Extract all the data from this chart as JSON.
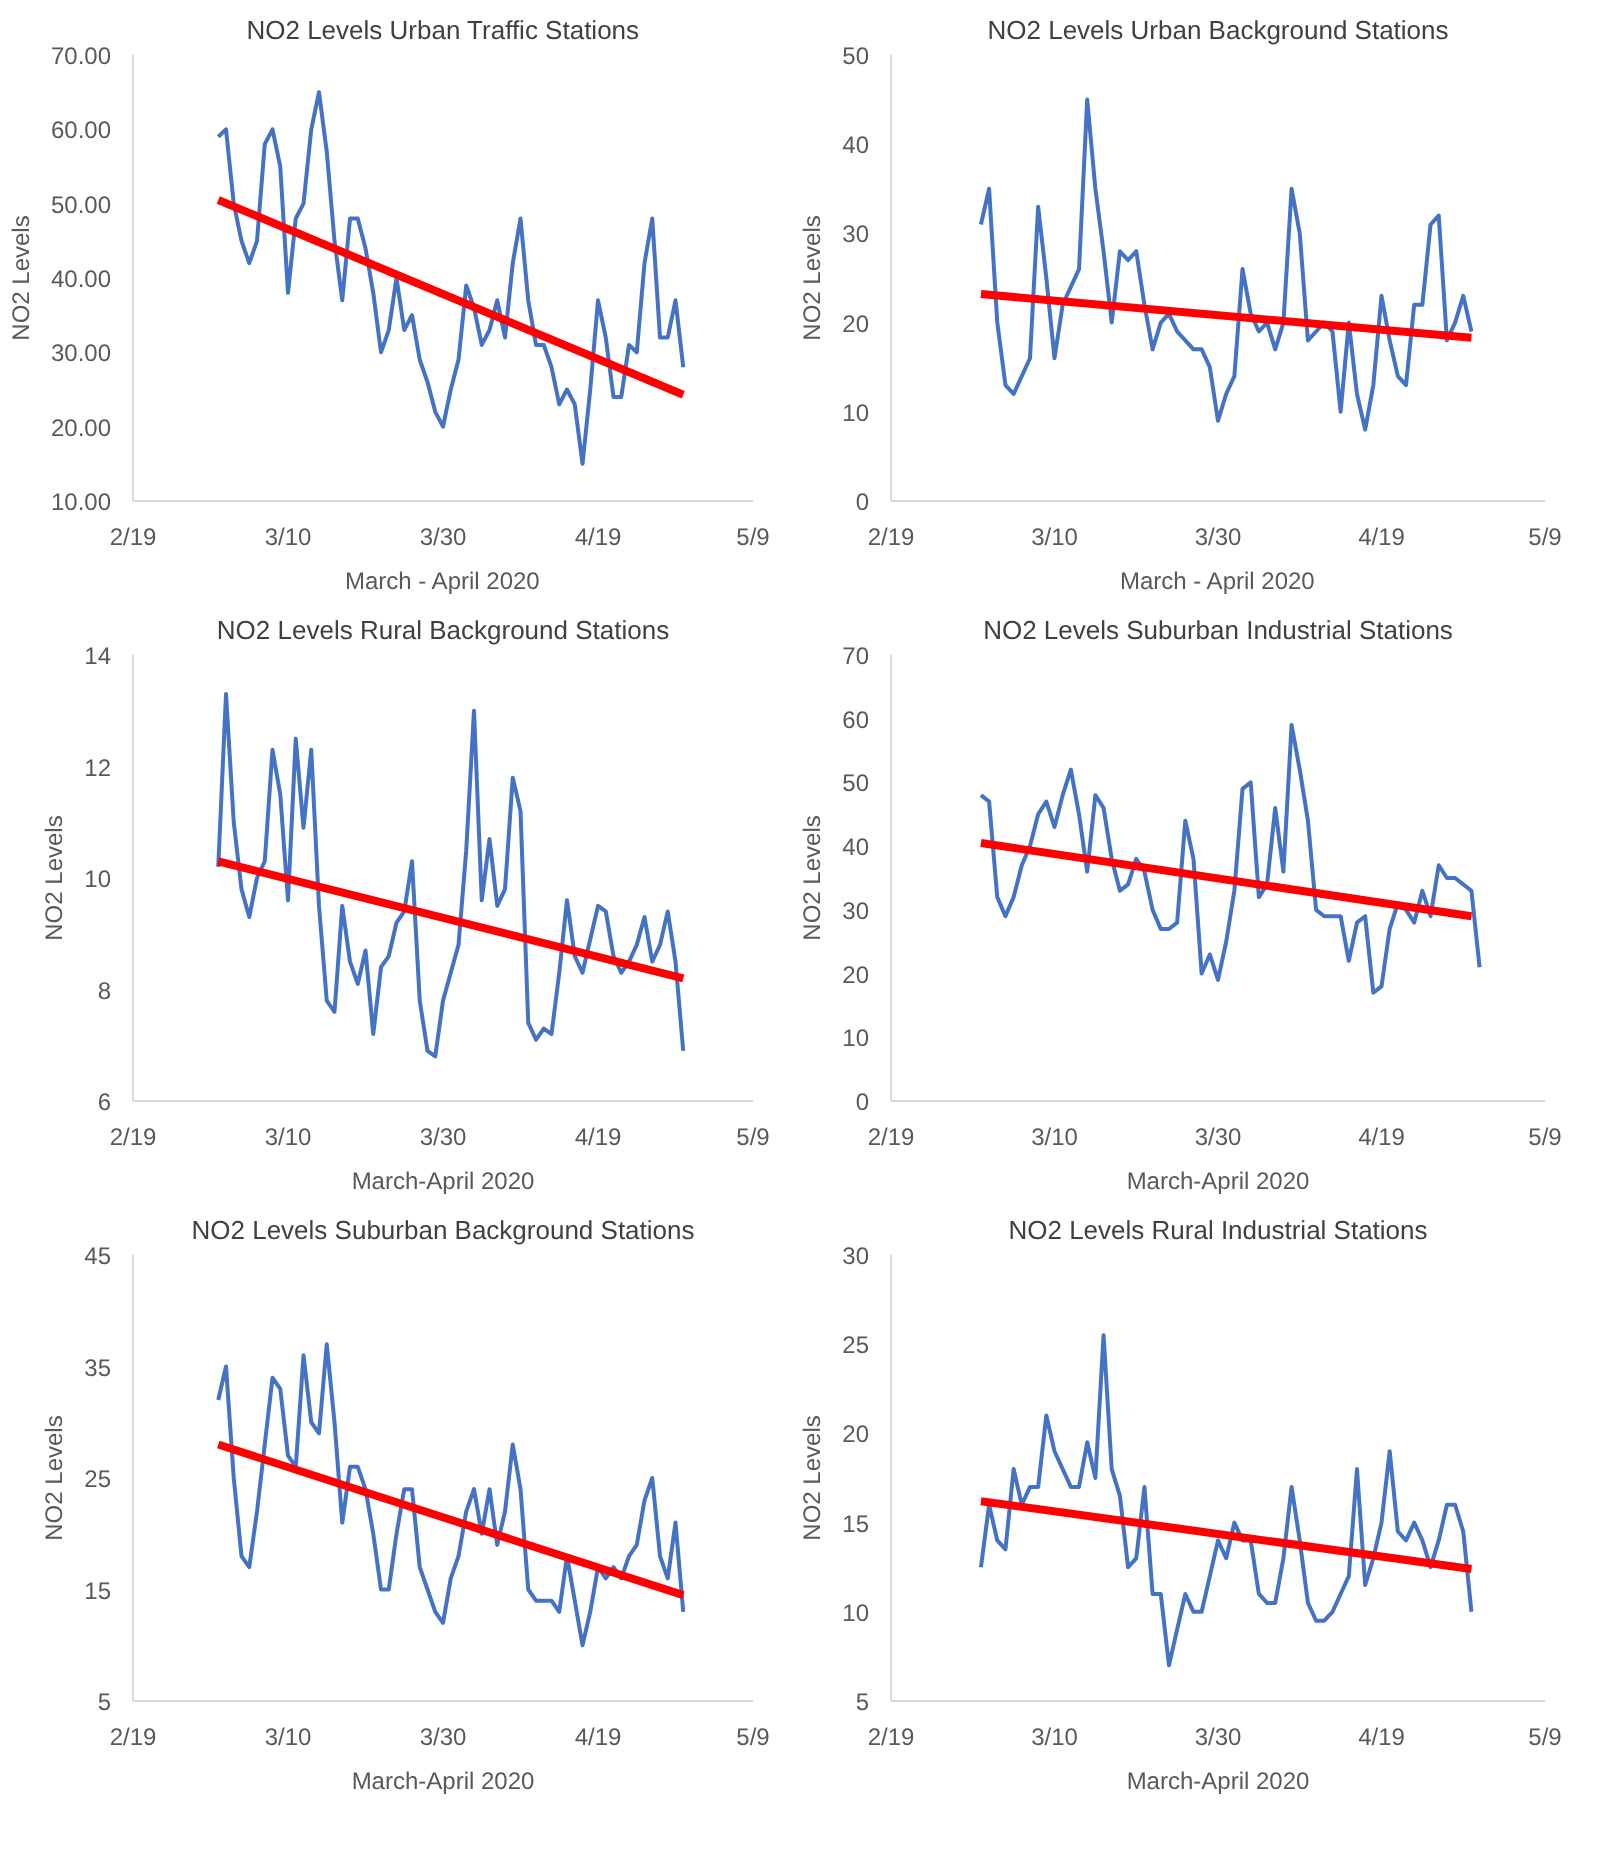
{
  "chart_data": [
    {
      "type": "line",
      "title": "NO2 Levels Urban Traffic Stations",
      "xlabel": "March - April 2020",
      "ylabel": "NO2 Levels",
      "grid": false,
      "x": [
        "2020-03-01",
        "2020-03-02",
        "2020-03-03",
        "2020-03-04",
        "2020-03-05",
        "2020-03-06",
        "2020-03-07",
        "2020-03-08",
        "2020-03-09",
        "2020-03-10",
        "2020-03-11",
        "2020-03-12",
        "2020-03-13",
        "2020-03-14",
        "2020-03-15",
        "2020-03-16",
        "2020-03-17",
        "2020-03-18",
        "2020-03-19",
        "2020-03-20",
        "2020-03-21",
        "2020-03-22",
        "2020-03-23",
        "2020-03-24",
        "2020-03-25",
        "2020-03-26",
        "2020-03-27",
        "2020-03-28",
        "2020-03-29",
        "2020-03-30",
        "2020-03-31",
        "2020-04-01",
        "2020-04-02",
        "2020-04-03",
        "2020-04-04",
        "2020-04-05",
        "2020-04-06",
        "2020-04-07",
        "2020-04-08",
        "2020-04-09",
        "2020-04-10",
        "2020-04-11",
        "2020-04-12",
        "2020-04-13",
        "2020-04-14",
        "2020-04-15",
        "2020-04-16",
        "2020-04-17",
        "2020-04-18",
        "2020-04-19",
        "2020-04-20",
        "2020-04-21",
        "2020-04-22",
        "2020-04-23",
        "2020-04-24",
        "2020-04-25",
        "2020-04-26",
        "2020-04-27",
        "2020-04-28",
        "2020-04-29",
        "2020-04-30"
      ],
      "series": [
        {
          "color": "#4472c4",
          "values": [
            59,
            60,
            50,
            45,
            42,
            45,
            58,
            60,
            55,
            38,
            48,
            50,
            60,
            65,
            57,
            45,
            37,
            48,
            48,
            44,
            38,
            30,
            33,
            40,
            33,
            35,
            29,
            26,
            22,
            20,
            25,
            29,
            39,
            36,
            31,
            33,
            37,
            32,
            42,
            48,
            37,
            31,
            31,
            28,
            23,
            25,
            23,
            15,
            25,
            37,
            32,
            24,
            24,
            31,
            30,
            42,
            48,
            32,
            32,
            37,
            28
          ]
        },
        {
          "type": "line",
          "color": "#ff0000",
          "x": [
            "2020-03-01",
            "2020-04-30"
          ],
          "values": [
            50.5,
            24.3
          ]
        }
      ],
      "xlim": [
        "2020-02-19",
        "2020-05-09"
      ],
      "xticks": [
        {
          "value": "2020-02-19",
          "label": "2/19"
        },
        {
          "value": "2020-03-10",
          "label": "3/10"
        },
        {
          "value": "2020-03-30",
          "label": "3/30"
        },
        {
          "value": "2020-04-19",
          "label": "4/19"
        },
        {
          "value": "2020-05-09",
          "label": "5/9"
        }
      ],
      "ylim": [
        10,
        70
      ],
      "yticks": [
        {
          "value": 10,
          "label": "10.00"
        },
        {
          "value": 20,
          "label": "20.00"
        },
        {
          "value": 30,
          "label": "30.00"
        },
        {
          "value": 40,
          "label": "40.00"
        },
        {
          "value": 50,
          "label": "50.00"
        },
        {
          "value": 60,
          "label": "60.00"
        },
        {
          "value": 70,
          "label": "70.00"
        }
      ]
    },
    {
      "type": "line",
      "title": "NO2 Levels Urban Background Stations",
      "xlabel": "March - April 2020",
      "ylabel": "NO2 Levels",
      "grid": false,
      "x": [
        "2020-03-01",
        "2020-03-02",
        "2020-03-03",
        "2020-03-04",
        "2020-03-05",
        "2020-03-06",
        "2020-03-07",
        "2020-03-08",
        "2020-03-09",
        "2020-03-10",
        "2020-03-11",
        "2020-03-12",
        "2020-03-13",
        "2020-03-14",
        "2020-03-15",
        "2020-03-16",
        "2020-03-17",
        "2020-03-18",
        "2020-03-19",
        "2020-03-20",
        "2020-03-21",
        "2020-03-22",
        "2020-03-23",
        "2020-03-24",
        "2020-03-25",
        "2020-03-26",
        "2020-03-27",
        "2020-03-28",
        "2020-03-29",
        "2020-03-30",
        "2020-03-31",
        "2020-04-01",
        "2020-04-02",
        "2020-04-03",
        "2020-04-04",
        "2020-04-05",
        "2020-04-06",
        "2020-04-07",
        "2020-04-08",
        "2020-04-09",
        "2020-04-10",
        "2020-04-11",
        "2020-04-12",
        "2020-04-13",
        "2020-04-14",
        "2020-04-15",
        "2020-04-16",
        "2020-04-17",
        "2020-04-18",
        "2020-04-19",
        "2020-04-20",
        "2020-04-21",
        "2020-04-22",
        "2020-04-23",
        "2020-04-24",
        "2020-04-25",
        "2020-04-26",
        "2020-04-27",
        "2020-04-28",
        "2020-04-29",
        "2020-04-30"
      ],
      "series": [
        {
          "color": "#4472c4",
          "values": [
            31,
            35,
            20,
            13,
            12,
            14,
            16,
            33,
            25,
            16,
            22,
            24,
            26,
            45,
            35,
            28,
            20,
            28,
            27,
            28,
            22,
            17,
            20,
            21,
            19,
            18,
            17,
            17,
            15,
            9,
            12,
            14,
            26,
            21,
            19,
            20,
            17,
            20,
            35,
            30,
            18,
            19,
            20,
            19,
            10,
            20,
            12,
            8,
            13,
            23,
            18,
            14,
            13,
            22,
            22,
            31,
            32,
            18,
            20,
            23,
            19
          ]
        },
        {
          "type": "line",
          "color": "#ff0000",
          "x": [
            "2020-03-01",
            "2020-04-30"
          ],
          "values": [
            23.2,
            18.3
          ]
        }
      ],
      "xlim": [
        "2020-02-19",
        "2020-05-09"
      ],
      "xticks": [
        {
          "value": "2020-02-19",
          "label": "2/19"
        },
        {
          "value": "2020-03-10",
          "label": "3/10"
        },
        {
          "value": "2020-03-30",
          "label": "3/30"
        },
        {
          "value": "2020-04-19",
          "label": "4/19"
        },
        {
          "value": "2020-05-09",
          "label": "5/9"
        }
      ],
      "ylim": [
        0,
        50
      ],
      "yticks": [
        0,
        10,
        20,
        30,
        40,
        50
      ]
    },
    {
      "type": "line",
      "title": "NO2 Levels Rural Background Stations",
      "xlabel": "March-April 2020",
      "ylabel": "NO2 Levels",
      "grid": false,
      "x": [
        "2020-03-01",
        "2020-03-02",
        "2020-03-03",
        "2020-03-04",
        "2020-03-05",
        "2020-03-06",
        "2020-03-07",
        "2020-03-08",
        "2020-03-09",
        "2020-03-10",
        "2020-03-11",
        "2020-03-12",
        "2020-03-13",
        "2020-03-14",
        "2020-03-15",
        "2020-03-16",
        "2020-03-17",
        "2020-03-18",
        "2020-03-19",
        "2020-03-20",
        "2020-03-21",
        "2020-03-22",
        "2020-03-23",
        "2020-03-24",
        "2020-03-25",
        "2020-03-26",
        "2020-03-27",
        "2020-03-28",
        "2020-03-29",
        "2020-03-30",
        "2020-03-31",
        "2020-04-01",
        "2020-04-02",
        "2020-04-03",
        "2020-04-04",
        "2020-04-05",
        "2020-04-06",
        "2020-04-07",
        "2020-04-08",
        "2020-04-09",
        "2020-04-10",
        "2020-04-11",
        "2020-04-12",
        "2020-04-13",
        "2020-04-14",
        "2020-04-15",
        "2020-04-16",
        "2020-04-17",
        "2020-04-18",
        "2020-04-19",
        "2020-04-20",
        "2020-04-21",
        "2020-04-22",
        "2020-04-23",
        "2020-04-24",
        "2020-04-25",
        "2020-04-26",
        "2020-04-27",
        "2020-04-28",
        "2020-04-29",
        "2020-04-30"
      ],
      "series": [
        {
          "color": "#4472c4",
          "values": [
            10.2,
            13.3,
            11,
            9.8,
            9.3,
            10,
            10.3,
            12.3,
            11.5,
            9.6,
            12.5,
            10.9,
            12.3,
            9.5,
            7.8,
            7.6,
            9.5,
            8.5,
            8.1,
            8.7,
            7.2,
            8.4,
            8.6,
            9.2,
            9.4,
            10.3,
            7.8,
            6.9,
            6.8,
            7.8,
            8.3,
            8.8,
            10.5,
            13,
            9.6,
            10.7,
            9.5,
            9.8,
            11.8,
            11.2,
            7.4,
            7.1,
            7.3,
            7.2,
            8.3,
            9.6,
            8.6,
            8.3,
            8.9,
            9.5,
            9.4,
            8.6,
            8.3,
            8.5,
            8.8,
            9.3,
            8.5,
            8.8,
            9.4,
            8.5,
            6.9
          ]
        },
        {
          "type": "line",
          "color": "#ff0000",
          "x": [
            "2020-03-01",
            "2020-04-30"
          ],
          "values": [
            10.3,
            8.2
          ]
        }
      ],
      "xlim": [
        "2020-02-19",
        "2020-05-09"
      ],
      "xticks": [
        {
          "value": "2020-02-19",
          "label": "2/19"
        },
        {
          "value": "2020-03-10",
          "label": "3/10"
        },
        {
          "value": "2020-03-30",
          "label": "3/30"
        },
        {
          "value": "2020-04-19",
          "label": "4/19"
        },
        {
          "value": "2020-05-09",
          "label": "5/9"
        }
      ],
      "ylim": [
        6,
        14
      ],
      "yticks": [
        6,
        8,
        10,
        12,
        14
      ]
    },
    {
      "type": "line",
      "title": "NO2 Levels Suburban Industrial Stations",
      "xlabel": "March-April 2020",
      "ylabel": "NO2 Levels",
      "grid": false,
      "x": [
        "2020-03-01",
        "2020-03-02",
        "2020-03-03",
        "2020-03-04",
        "2020-03-05",
        "2020-03-06",
        "2020-03-07",
        "2020-03-08",
        "2020-03-09",
        "2020-03-10",
        "2020-03-11",
        "2020-03-12",
        "2020-03-13",
        "2020-03-14",
        "2020-03-15",
        "2020-03-16",
        "2020-03-17",
        "2020-03-18",
        "2020-03-19",
        "2020-03-20",
        "2020-03-21",
        "2020-03-22",
        "2020-03-23",
        "2020-03-24",
        "2020-03-25",
        "2020-03-26",
        "2020-03-27",
        "2020-03-28",
        "2020-03-29",
        "2020-03-30",
        "2020-03-31",
        "2020-04-01",
        "2020-04-02",
        "2020-04-03",
        "2020-04-04",
        "2020-04-05",
        "2020-04-06",
        "2020-04-07",
        "2020-04-08",
        "2020-04-09",
        "2020-04-10",
        "2020-04-11",
        "2020-04-12",
        "2020-04-13",
        "2020-04-14",
        "2020-04-15",
        "2020-04-16",
        "2020-04-17",
        "2020-04-18",
        "2020-04-19",
        "2020-04-20",
        "2020-04-21",
        "2020-04-22",
        "2020-04-23",
        "2020-04-24",
        "2020-04-25",
        "2020-04-26",
        "2020-04-27",
        "2020-04-28",
        "2020-04-29",
        "2020-04-30",
        "2020-05-01"
      ],
      "series": [
        {
          "color": "#4472c4",
          "values": [
            48,
            47,
            32,
            29,
            32,
            37,
            40,
            45,
            47,
            43,
            48,
            52,
            45,
            36,
            48,
            46,
            38,
            33,
            34,
            38,
            36,
            30,
            27,
            27,
            28,
            44,
            38,
            20,
            23,
            19,
            25,
            33,
            49,
            50,
            32,
            34,
            46,
            36,
            59,
            52,
            44,
            30,
            29,
            29,
            29,
            22,
            28,
            29,
            17,
            18,
            27,
            31,
            30,
            28,
            33,
            29,
            37,
            35,
            35,
            34,
            33,
            21
          ]
        },
        {
          "type": "line",
          "color": "#ff0000",
          "x": [
            "2020-03-01",
            "2020-04-30"
          ],
          "values": [
            40.5,
            29
          ]
        }
      ],
      "xlim": [
        "2020-02-19",
        "2020-05-09"
      ],
      "xticks": [
        {
          "value": "2020-02-19",
          "label": "2/19"
        },
        {
          "value": "2020-03-10",
          "label": "3/10"
        },
        {
          "value": "2020-03-30",
          "label": "3/30"
        },
        {
          "value": "2020-04-19",
          "label": "4/19"
        },
        {
          "value": "2020-05-09",
          "label": "5/9"
        }
      ],
      "ylim": [
        0,
        70
      ],
      "yticks": [
        0,
        10,
        20,
        30,
        40,
        50,
        60,
        70
      ]
    },
    {
      "type": "line",
      "title": "NO2 Levels Suburban Background Stations",
      "xlabel": "March-April 2020",
      "ylabel": "NO2 Levels",
      "grid": false,
      "x": [
        "2020-03-01",
        "2020-03-02",
        "2020-03-03",
        "2020-03-04",
        "2020-03-05",
        "2020-03-06",
        "2020-03-07",
        "2020-03-08",
        "2020-03-09",
        "2020-03-10",
        "2020-03-11",
        "2020-03-12",
        "2020-03-13",
        "2020-03-14",
        "2020-03-15",
        "2020-03-16",
        "2020-03-17",
        "2020-03-18",
        "2020-03-19",
        "2020-03-20",
        "2020-03-21",
        "2020-03-22",
        "2020-03-23",
        "2020-03-24",
        "2020-03-25",
        "2020-03-26",
        "2020-03-27",
        "2020-03-28",
        "2020-03-29",
        "2020-03-30",
        "2020-03-31",
        "2020-04-01",
        "2020-04-02",
        "2020-04-03",
        "2020-04-04",
        "2020-04-05",
        "2020-04-06",
        "2020-04-07",
        "2020-04-08",
        "2020-04-09",
        "2020-04-10",
        "2020-04-11",
        "2020-04-12",
        "2020-04-13",
        "2020-04-14",
        "2020-04-15",
        "2020-04-16",
        "2020-04-17",
        "2020-04-18",
        "2020-04-19",
        "2020-04-20",
        "2020-04-21",
        "2020-04-22",
        "2020-04-23",
        "2020-04-24",
        "2020-04-25",
        "2020-04-26",
        "2020-04-27",
        "2020-04-28",
        "2020-04-29",
        "2020-04-30"
      ],
      "series": [
        {
          "color": "#4472c4",
          "values": [
            32,
            35,
            25,
            18,
            17,
            22,
            28,
            34,
            33,
            27,
            26,
            36,
            30,
            29,
            37,
            30,
            21,
            26,
            26,
            24,
            20,
            15,
            15,
            20,
            24,
            24,
            17,
            15,
            13,
            12,
            16,
            18,
            22,
            24,
            20,
            24,
            19,
            22,
            28,
            24,
            15,
            14,
            14,
            14,
            13,
            18,
            14,
            10,
            13,
            17,
            16,
            17,
            16,
            18,
            19,
            23,
            25,
            18,
            16,
            21,
            13
          ]
        },
        {
          "type": "line",
          "color": "#ff0000",
          "x": [
            "2020-03-01",
            "2020-04-30"
          ],
          "values": [
            28,
            14.5
          ]
        }
      ],
      "xlim": [
        "2020-02-19",
        "2020-05-09"
      ],
      "xticks": [
        {
          "value": "2020-02-19",
          "label": "2/19"
        },
        {
          "value": "2020-03-10",
          "label": "3/10"
        },
        {
          "value": "2020-03-30",
          "label": "3/30"
        },
        {
          "value": "2020-04-19",
          "label": "4/19"
        },
        {
          "value": "2020-05-09",
          "label": "5/9"
        }
      ],
      "ylim": [
        5,
        45
      ],
      "yticks": [
        5,
        15,
        25,
        35,
        45
      ]
    },
    {
      "type": "line",
      "title": "NO2 Levels Rural Industrial Stations",
      "xlabel": "March-April 2020",
      "ylabel": "NO2 Levels",
      "grid": false,
      "x": [
        "2020-03-01",
        "2020-03-02",
        "2020-03-03",
        "2020-03-04",
        "2020-03-05",
        "2020-03-06",
        "2020-03-07",
        "2020-03-08",
        "2020-03-09",
        "2020-03-10",
        "2020-03-11",
        "2020-03-12",
        "2020-03-13",
        "2020-03-14",
        "2020-03-15",
        "2020-03-16",
        "2020-03-17",
        "2020-03-18",
        "2020-03-19",
        "2020-03-20",
        "2020-03-21",
        "2020-03-22",
        "2020-03-23",
        "2020-03-24",
        "2020-03-25",
        "2020-03-26",
        "2020-03-27",
        "2020-03-28",
        "2020-03-29",
        "2020-03-30",
        "2020-03-31",
        "2020-04-01",
        "2020-04-02",
        "2020-04-03",
        "2020-04-04",
        "2020-04-05",
        "2020-04-06",
        "2020-04-07",
        "2020-04-08",
        "2020-04-09",
        "2020-04-10",
        "2020-04-11",
        "2020-04-12",
        "2020-04-13",
        "2020-04-14",
        "2020-04-15",
        "2020-04-16",
        "2020-04-17",
        "2020-04-18",
        "2020-04-19",
        "2020-04-20",
        "2020-04-21",
        "2020-04-22",
        "2020-04-23",
        "2020-04-24",
        "2020-04-25",
        "2020-04-26",
        "2020-04-27",
        "2020-04-28",
        "2020-04-29",
        "2020-04-30"
      ],
      "series": [
        {
          "color": "#4472c4",
          "values": [
            12.5,
            16,
            14,
            13.5,
            18,
            16,
            17,
            17,
            21,
            19,
            18,
            17,
            17,
            19.5,
            17.5,
            25.5,
            18,
            16.5,
            12.5,
            13,
            17,
            11,
            11,
            7,
            9,
            11,
            10,
            10,
            12,
            14,
            13,
            15,
            14,
            14,
            11,
            10.5,
            10.5,
            13,
            17,
            14,
            10.5,
            9.5,
            9.5,
            10,
            11,
            12,
            18,
            11.5,
            13,
            15,
            19,
            14.5,
            14,
            15,
            14,
            12.5,
            14,
            16,
            16,
            14.5,
            10
          ]
        },
        {
          "type": "line",
          "color": "#ff0000",
          "x": [
            "2020-03-01",
            "2020-04-30"
          ],
          "values": [
            16.2,
            12.4
          ]
        }
      ],
      "xlim": [
        "2020-02-19",
        "2020-05-09"
      ],
      "xticks": [
        {
          "value": "2020-02-19",
          "label": "2/19"
        },
        {
          "value": "2020-03-10",
          "label": "3/10"
        },
        {
          "value": "2020-03-30",
          "label": "3/30"
        },
        {
          "value": "2020-04-19",
          "label": "4/19"
        },
        {
          "value": "2020-05-09",
          "label": "5/9"
        }
      ],
      "ylim": [
        5,
        30
      ],
      "yticks": [
        5,
        10,
        15,
        20,
        25,
        30
      ]
    }
  ]
}
